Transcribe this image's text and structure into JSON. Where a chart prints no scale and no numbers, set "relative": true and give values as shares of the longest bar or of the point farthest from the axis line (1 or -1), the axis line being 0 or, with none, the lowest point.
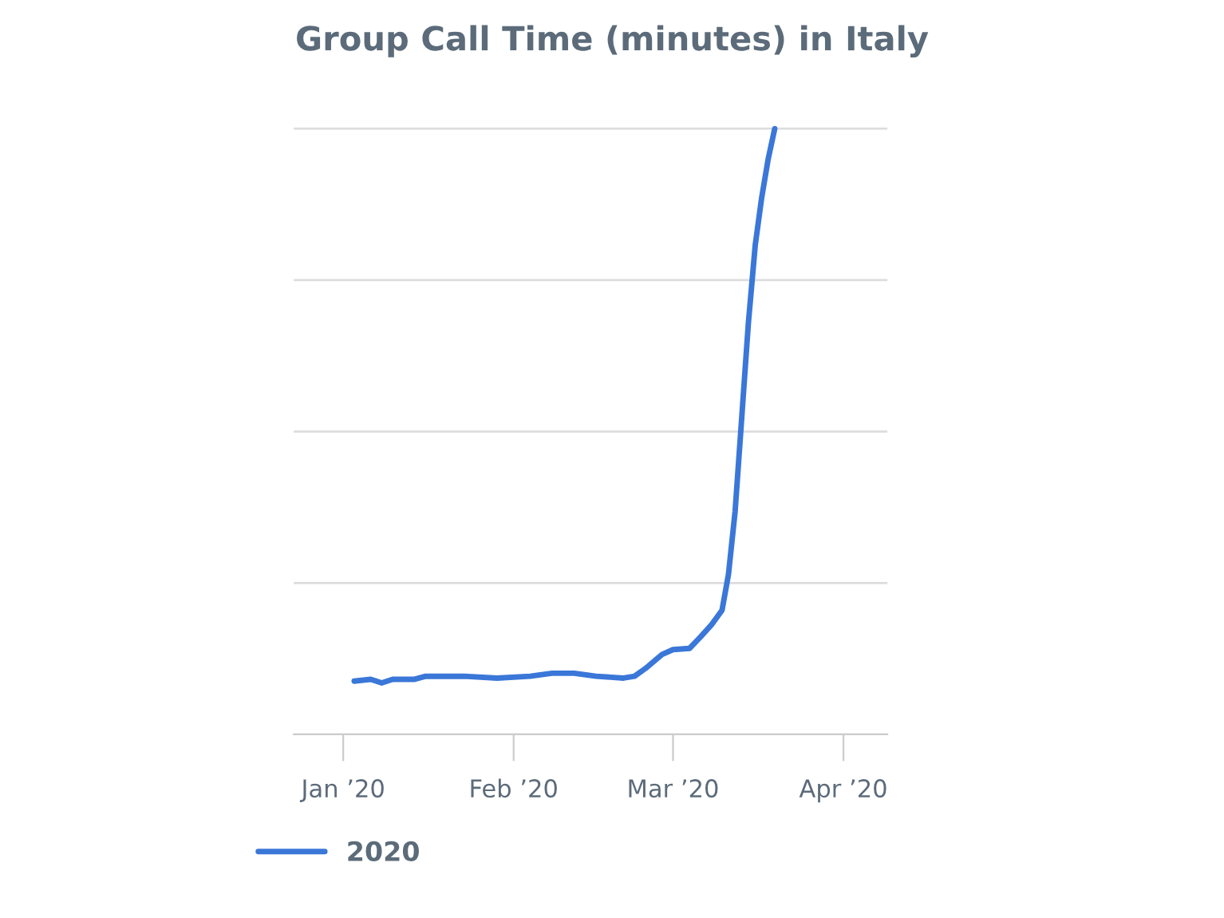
{
  "chart_data": {
    "type": "line",
    "title": "Group Call Time (minutes) in Italy",
    "relative": true,
    "x": [
      "2020-01-03",
      "2020-01-06",
      "2020-01-08",
      "2020-01-10",
      "2020-01-14",
      "2020-01-16",
      "2020-01-23",
      "2020-01-29",
      "2020-02-04",
      "2020-02-08",
      "2020-02-12",
      "2020-02-16",
      "2020-02-21",
      "2020-02-23",
      "2020-02-25",
      "2020-02-28",
      "2020-03-01",
      "2020-03-04",
      "2020-03-06",
      "2020-03-08",
      "2020-03-09T22:00",
      "2020-03-11T02:00",
      "2020-03-12T07:00",
      "2020-03-13T12:00",
      "2020-03-14T17:00",
      "2020-03-15T23:00",
      "2020-03-17T03:00",
      "2020-03-18T08:00",
      "2020-03-19T12:00"
    ],
    "series": [
      {
        "name": "2020",
        "color": "#3a77d8",
        "values": [
          0.088,
          0.091,
          0.085,
          0.091,
          0.091,
          0.096,
          0.096,
          0.093,
          0.096,
          0.101,
          0.101,
          0.096,
          0.093,
          0.096,
          0.109,
          0.132,
          0.14,
          0.142,
          0.161,
          0.181,
          0.205,
          0.264,
          0.368,
          0.523,
          0.679,
          0.808,
          0.886,
          0.951,
          1.0
        ]
      }
    ],
    "xlim": [
      "2019-12-23",
      "2020-04-09"
    ],
    "xticks": [
      {
        "value": "2020-01-01",
        "label": "Jan ’20"
      },
      {
        "value": "2020-02-01",
        "label": "Feb ’20"
      },
      {
        "value": "2020-03-01",
        "label": "Mar ’20"
      },
      {
        "value": "2020-04-01",
        "label": "Apr ’20"
      }
    ],
    "grid": "y",
    "legend": "bottom",
    "marker": "none",
    "line_style": "solid"
  }
}
